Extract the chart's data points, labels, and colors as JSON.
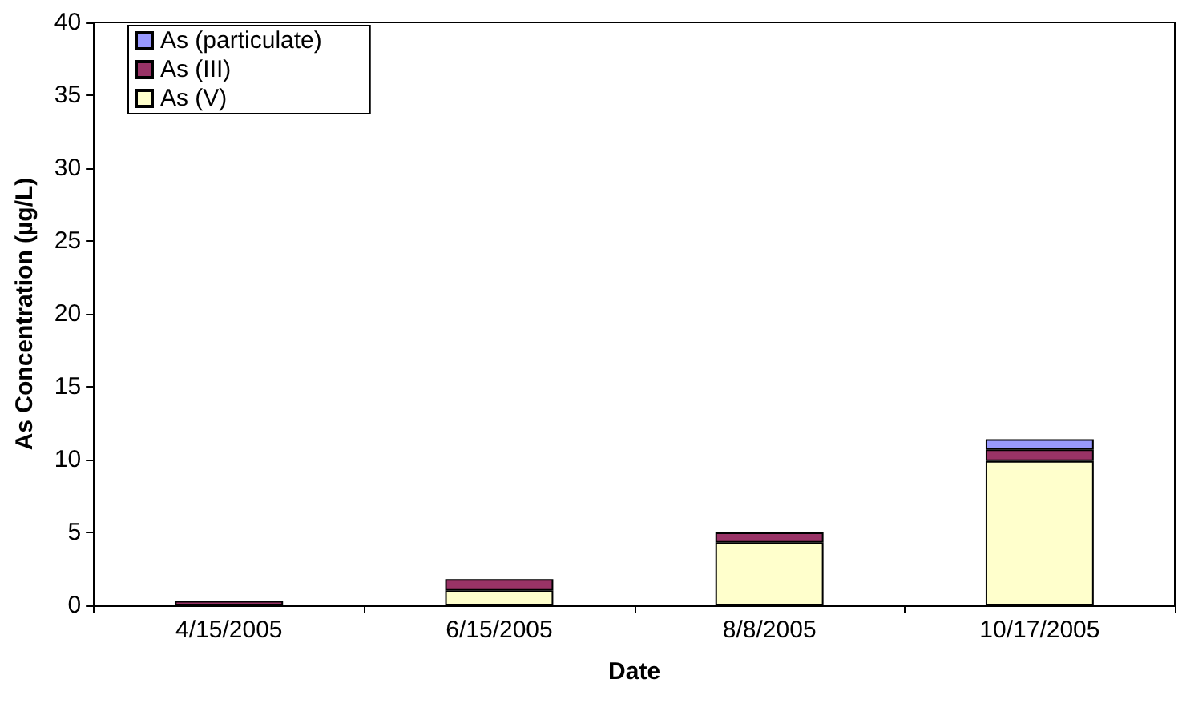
{
  "chart_data": {
    "type": "bar",
    "stacked": true,
    "xlabel": "Date",
    "ylabel": "As Concentration (µg/L)",
    "categories": [
      "4/15/2005",
      "6/15/2005",
      "8/8/2005",
      "10/17/2005"
    ],
    "series": [
      {
        "name": "As (V)",
        "color": "#ffffcc",
        "values": [
          null,
          1.0,
          4.3,
          9.9
        ]
      },
      {
        "name": "As (III)",
        "color": "#993366",
        "values": [
          0.3,
          0.8,
          0.7,
          0.8
        ]
      },
      {
        "name": "As (particulate)",
        "color": "#9999ff",
        "values": [
          null,
          null,
          null,
          0.7
        ]
      }
    ],
    "ylim": [
      0,
      40
    ],
    "yticks": [
      0,
      5,
      10,
      15,
      20,
      25,
      30,
      35,
      40
    ],
    "grid": false,
    "legend": "top left"
  }
}
